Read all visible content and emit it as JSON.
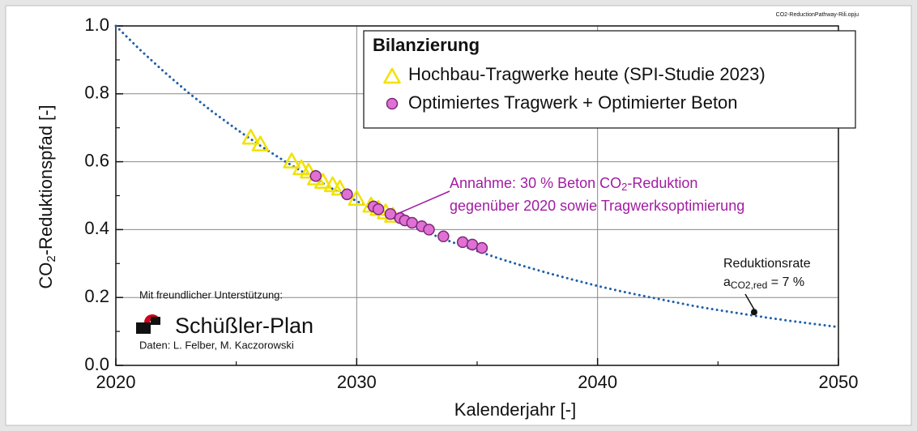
{
  "chart_data": {
    "type": "scatter",
    "file_name": "CO2-ReductionPathway-Rili.opju",
    "x_label": "Kalenderjahr [-]",
    "y_label": [
      "CO",
      "2",
      "-Reduktionspfad [-]"
    ],
    "legend_title": "Bilanzierung",
    "xlim": [
      2020,
      2050
    ],
    "xticks": [
      2020,
      2030,
      2040,
      2050
    ],
    "ylim": [
      0,
      1
    ],
    "yticks": [
      {
        "value": 0,
        "label": "0.0"
      },
      0.2,
      0.4,
      0.6,
      0.8,
      {
        "value": 1,
        "label": "1.0"
      }
    ],
    "grid": true,
    "curve": {
      "color": "#1f5fa8",
      "x": [
        2020,
        2021,
        2022,
        2023,
        2024,
        2025,
        2026,
        2027,
        2028,
        2029,
        2030,
        2031,
        2032,
        2033,
        2034,
        2035,
        2036,
        2037,
        2038,
        2039,
        2040,
        2041,
        2042,
        2043,
        2044,
        2045,
        2046,
        2047,
        2048,
        2049,
        2050
      ],
      "values": [
        1.0,
        0.93,
        0.865,
        0.804,
        0.748,
        0.696,
        0.647,
        0.602,
        0.56,
        0.52,
        0.484,
        0.45,
        0.419,
        0.389,
        0.362,
        0.337,
        0.313,
        0.291,
        0.271,
        0.252,
        0.234,
        0.218,
        0.203,
        0.189,
        0.175,
        0.163,
        0.152,
        0.141,
        0.131,
        0.122,
        0.113
      ]
    },
    "series": [
      {
        "name": "Hochbau-Tragwerke heute (SPI-Studie 2023)",
        "color": "#f2e200",
        "marker": "triangle",
        "x": [
          2025.6,
          2026.0,
          2027.3,
          2027.7,
          2028.0,
          2028.3,
          2028.6,
          2029.0,
          2029.3,
          2030.0,
          2030.6,
          2030.9,
          2031.2,
          2031.5
        ],
        "values": [
          0.67,
          0.65,
          0.6,
          0.58,
          0.57,
          0.55,
          0.54,
          0.53,
          0.52,
          0.49,
          0.47,
          0.46,
          0.45,
          0.44
        ]
      },
      {
        "name": "Optimiertes Tragwerk + Optimierter Beton",
        "color": "#e070d4",
        "marker": "circle",
        "x": [
          2028.3,
          2029.6,
          2030.7,
          2030.9,
          2031.4,
          2031.8,
          2032.0,
          2032.3,
          2032.7,
          2033.0,
          2033.6,
          2034.4,
          2034.8,
          2035.2
        ],
        "values": [
          0.558,
          0.504,
          0.468,
          0.46,
          0.446,
          0.434,
          0.427,
          0.42,
          0.41,
          0.4,
          0.38,
          0.363,
          0.356,
          0.346
        ]
      }
    ],
    "rate_point": {
      "x": 2046.5,
      "y": 0.157
    },
    "annotation": [
      "Annahme: 30 % Beton CO",
      "2",
      "-Reduktion",
      "gegenüber 2020 sowie Tragwerksoptimierung"
    ],
    "rate_label": [
      "Reduktionsrate",
      "a",
      "CO2,red",
      " = 7 %"
    ],
    "sponsor": [
      "Mit freundlicher Unterstützung:",
      "Schüßler-Plan",
      "Daten: L. Felber, M. Kaczorowski"
    ]
  }
}
